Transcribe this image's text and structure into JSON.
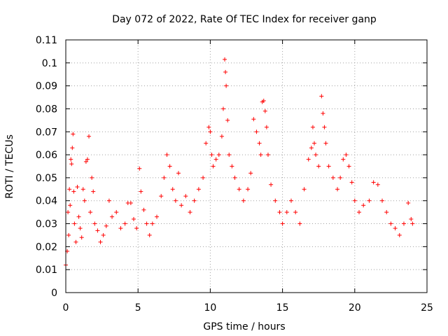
{
  "chart_data": {
    "type": "scatter",
    "title": "Day 072 of 2022, Rate Of TEC Index for receiver ganp",
    "xlabel": "GPS time / hours",
    "ylabel": "ROTI / TECUs",
    "xlim": [
      0,
      25
    ],
    "ylim": [
      0,
      0.11
    ],
    "xticks": [
      "0",
      "5",
      "10",
      "15",
      "20",
      "25"
    ],
    "yticks": [
      "0",
      "0.01",
      "0.02",
      "0.03",
      "0.04",
      "0.05",
      "0.06",
      "0.07",
      "0.08",
      "0.09",
      "0.1",
      "0.11"
    ],
    "grid": true,
    "marker": "+",
    "color": "#ff0000",
    "series": [
      {
        "points": [
          [
            0.0,
            0.012
          ],
          [
            0.1,
            0.018
          ],
          [
            0.15,
            0.035
          ],
          [
            0.2,
            0.025
          ],
          [
            0.25,
            0.045
          ],
          [
            0.3,
            0.038
          ],
          [
            0.35,
            0.058
          ],
          [
            0.4,
            0.056
          ],
          [
            0.45,
            0.063
          ],
          [
            0.5,
            0.069
          ],
          [
            0.55,
            0.044
          ],
          [
            0.6,
            0.03
          ],
          [
            0.7,
            0.022
          ],
          [
            0.8,
            0.046
          ],
          [
            0.9,
            0.033
          ],
          [
            1.0,
            0.028
          ],
          [
            1.1,
            0.024
          ],
          [
            1.2,
            0.045
          ],
          [
            1.3,
            0.04
          ],
          [
            1.4,
            0.057
          ],
          [
            1.5,
            0.058
          ],
          [
            1.6,
            0.068
          ],
          [
            1.7,
            0.035
          ],
          [
            1.8,
            0.05
          ],
          [
            1.9,
            0.044
          ],
          [
            2.0,
            0.03
          ],
          [
            2.2,
            0.027
          ],
          [
            2.4,
            0.022
          ],
          [
            2.6,
            0.025
          ],
          [
            2.8,
            0.029
          ],
          [
            3.0,
            0.04
          ],
          [
            3.2,
            0.033
          ],
          [
            3.5,
            0.035
          ],
          [
            3.8,
            0.028
          ],
          [
            4.1,
            0.03
          ],
          [
            4.3,
            0.039
          ],
          [
            4.5,
            0.039
          ],
          [
            4.7,
            0.032
          ],
          [
            4.9,
            0.028
          ],
          [
            5.1,
            0.054
          ],
          [
            5.2,
            0.044
          ],
          [
            5.4,
            0.036
          ],
          [
            5.6,
            0.03
          ],
          [
            5.8,
            0.025
          ],
          [
            6.0,
            0.03
          ],
          [
            6.3,
            0.033
          ],
          [
            6.6,
            0.042
          ],
          [
            6.8,
            0.05
          ],
          [
            7.0,
            0.06
          ],
          [
            7.2,
            0.055
          ],
          [
            7.4,
            0.045
          ],
          [
            7.6,
            0.04
          ],
          [
            7.8,
            0.052
          ],
          [
            8.0,
            0.038
          ],
          [
            8.3,
            0.042
          ],
          [
            8.6,
            0.035
          ],
          [
            8.9,
            0.04
          ],
          [
            9.2,
            0.045
          ],
          [
            9.5,
            0.05
          ],
          [
            9.7,
            0.065
          ],
          [
            9.9,
            0.072
          ],
          [
            10.0,
            0.07
          ],
          [
            10.1,
            0.06
          ],
          [
            10.2,
            0.055
          ],
          [
            10.4,
            0.058
          ],
          [
            10.6,
            0.06
          ],
          [
            10.8,
            0.068
          ],
          [
            10.9,
            0.08
          ],
          [
            11.0,
            0.1015
          ],
          [
            11.05,
            0.096
          ],
          [
            11.1,
            0.09
          ],
          [
            11.2,
            0.075
          ],
          [
            11.3,
            0.06
          ],
          [
            11.5,
            0.055
          ],
          [
            11.7,
            0.05
          ],
          [
            12.0,
            0.045
          ],
          [
            12.3,
            0.04
          ],
          [
            12.6,
            0.045
          ],
          [
            12.8,
            0.052
          ],
          [
            13.0,
            0.0755
          ],
          [
            13.2,
            0.07
          ],
          [
            13.4,
            0.065
          ],
          [
            13.5,
            0.06
          ],
          [
            13.6,
            0.083
          ],
          [
            13.7,
            0.0835
          ],
          [
            13.8,
            0.079
          ],
          [
            13.9,
            0.072
          ],
          [
            14.0,
            0.06
          ],
          [
            14.2,
            0.047
          ],
          [
            14.5,
            0.04
          ],
          [
            14.8,
            0.035
          ],
          [
            15.0,
            0.03
          ],
          [
            15.3,
            0.035
          ],
          [
            15.6,
            0.04
          ],
          [
            15.9,
            0.035
          ],
          [
            16.2,
            0.03
          ],
          [
            16.5,
            0.045
          ],
          [
            16.8,
            0.058
          ],
          [
            17.0,
            0.063
          ],
          [
            17.1,
            0.072
          ],
          [
            17.2,
            0.065
          ],
          [
            17.3,
            0.06
          ],
          [
            17.5,
            0.055
          ],
          [
            17.7,
            0.0855
          ],
          [
            17.8,
            0.078
          ],
          [
            17.9,
            0.072
          ],
          [
            18.0,
            0.065
          ],
          [
            18.2,
            0.055
          ],
          [
            18.5,
            0.05
          ],
          [
            18.8,
            0.045
          ],
          [
            19.0,
            0.05
          ],
          [
            19.2,
            0.058
          ],
          [
            19.4,
            0.06
          ],
          [
            19.6,
            0.055
          ],
          [
            19.8,
            0.048
          ],
          [
            20.0,
            0.04
          ],
          [
            20.3,
            0.035
          ],
          [
            20.6,
            0.038
          ],
          [
            21.0,
            0.04
          ],
          [
            21.3,
            0.048
          ],
          [
            21.6,
            0.047
          ],
          [
            21.9,
            0.04
          ],
          [
            22.2,
            0.035
          ],
          [
            22.5,
            0.03
          ],
          [
            22.8,
            0.028
          ],
          [
            23.1,
            0.025
          ],
          [
            23.4,
            0.03
          ],
          [
            23.7,
            0.039
          ],
          [
            23.9,
            0.032
          ],
          [
            24.0,
            0.03
          ]
        ]
      }
    ]
  }
}
